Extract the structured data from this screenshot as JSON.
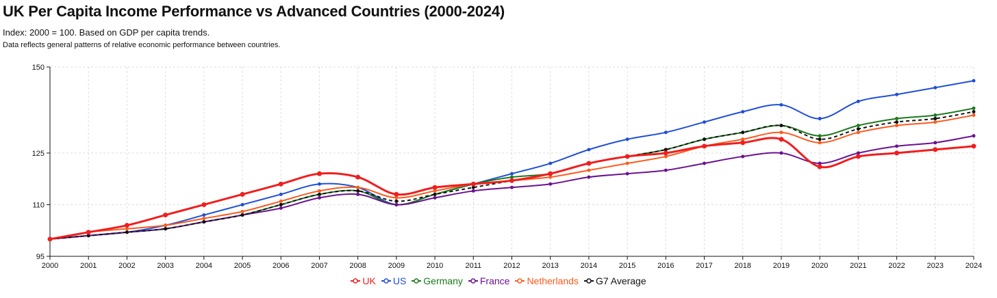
{
  "title": "UK Per Capita Income Performance vs Advanced Countries (2000-2024)",
  "subtitle": "Index: 2000 = 100. Based on GDP per capita trends.",
  "note": "Data reflects general patterns of relative economic performance between countries.",
  "chart_data": {
    "type": "line",
    "title": "UK Per Capita Income Performance vs Advanced Countries (2000-2024)",
    "xlabel": "",
    "ylabel": "",
    "x": [
      2000,
      2001,
      2002,
      2003,
      2004,
      2005,
      2006,
      2007,
      2008,
      2009,
      2010,
      2011,
      2012,
      2013,
      2014,
      2015,
      2016,
      2017,
      2018,
      2019,
      2020,
      2021,
      2022,
      2023,
      2024
    ],
    "ylim": [
      95,
      150
    ],
    "yticks": [
      95,
      110,
      125,
      150
    ],
    "grid": true,
    "legend": "bottom-center",
    "series": [
      {
        "name": "UK",
        "color": "#f01e1e",
        "dashed": false,
        "values": [
          100,
          102,
          104,
          107,
          110,
          113,
          116,
          119,
          118,
          113,
          115,
          116,
          117,
          119,
          122,
          124,
          125,
          127,
          128,
          129,
          121,
          124,
          125,
          126,
          127
        ]
      },
      {
        "name": "US",
        "color": "#1f4fd6",
        "dashed": false,
        "values": [
          100,
          101,
          102,
          104,
          107,
          110,
          113,
          116,
          115,
          110,
          113,
          116,
          119,
          122,
          126,
          129,
          131,
          134,
          137,
          139,
          135,
          140,
          142,
          144,
          146
        ]
      },
      {
        "name": "Germany",
        "color": "#1b7a1b",
        "dashed": false,
        "values": [
          100,
          101,
          102,
          103,
          105,
          107,
          110,
          113,
          114,
          110,
          113,
          116,
          118,
          119,
          122,
          124,
          126,
          129,
          131,
          133,
          130,
          133,
          135,
          136,
          138
        ]
      },
      {
        "name": "France",
        "color": "#6a1190",
        "dashed": false,
        "values": [
          100,
          101,
          102,
          103,
          105,
          107,
          109,
          112,
          113,
          110,
          112,
          114,
          115,
          116,
          118,
          119,
          120,
          122,
          124,
          125,
          122,
          125,
          127,
          128,
          130
        ]
      },
      {
        "name": "Netherlands",
        "color": "#fb5a1e",
        "dashed": false,
        "values": [
          100,
          102,
          103,
          104,
          106,
          108,
          111,
          114,
          115,
          112,
          114,
          116,
          117,
          118,
          120,
          122,
          124,
          127,
          129,
          131,
          128,
          131,
          133,
          134,
          136
        ]
      },
      {
        "name": "G7 Average",
        "color": "#111111",
        "dashed": true,
        "values": [
          100,
          101,
          102,
          103,
          105,
          107,
          110,
          113,
          114,
          111,
          113,
          115,
          117,
          119,
          122,
          124,
          126,
          129,
          131,
          133,
          129,
          132,
          134,
          135,
          137
        ]
      }
    ]
  }
}
